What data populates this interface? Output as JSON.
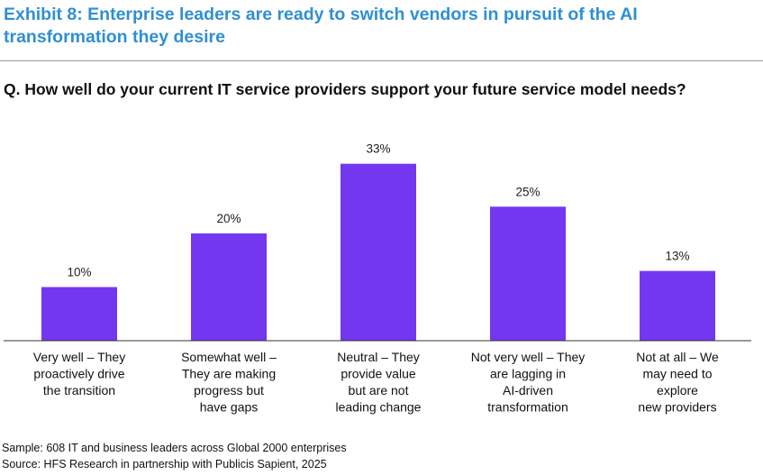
{
  "title": "Exhibit 8: Enterprise leaders are ready to switch vendors in pursuit of the AI transformation they desire",
  "question": "Q. How well do your current IT service providers support your future service model needs?",
  "footer": {
    "sample": "Sample: 608 IT and business leaders across Global 2000 enterprises",
    "source": "Source: HFS Research in partnership with Publicis Sapient, 2025"
  },
  "colors": {
    "title": "#2f8fd3",
    "bar": "#7337f0",
    "axis": "#333333"
  },
  "chart_data": {
    "type": "bar",
    "categories": [
      [
        "Very well – They",
        "proactively drive",
        "the transition"
      ],
      [
        "Somewhat well –",
        "They are making",
        "progress but",
        "have gaps"
      ],
      [
        "Neutral – They",
        "provide value",
        "but are not",
        "leading change"
      ],
      [
        "Not very well – They",
        "are lagging in",
        "AI-driven",
        "transformation"
      ],
      [
        "Not at all – We",
        "may need to",
        "explore",
        "new providers"
      ]
    ],
    "values": [
      10,
      20,
      33,
      25,
      13
    ],
    "data_labels": [
      "10%",
      "20%",
      "33%",
      "25%",
      "13%"
    ],
    "ylim": [
      0,
      40
    ],
    "grid": false
  }
}
